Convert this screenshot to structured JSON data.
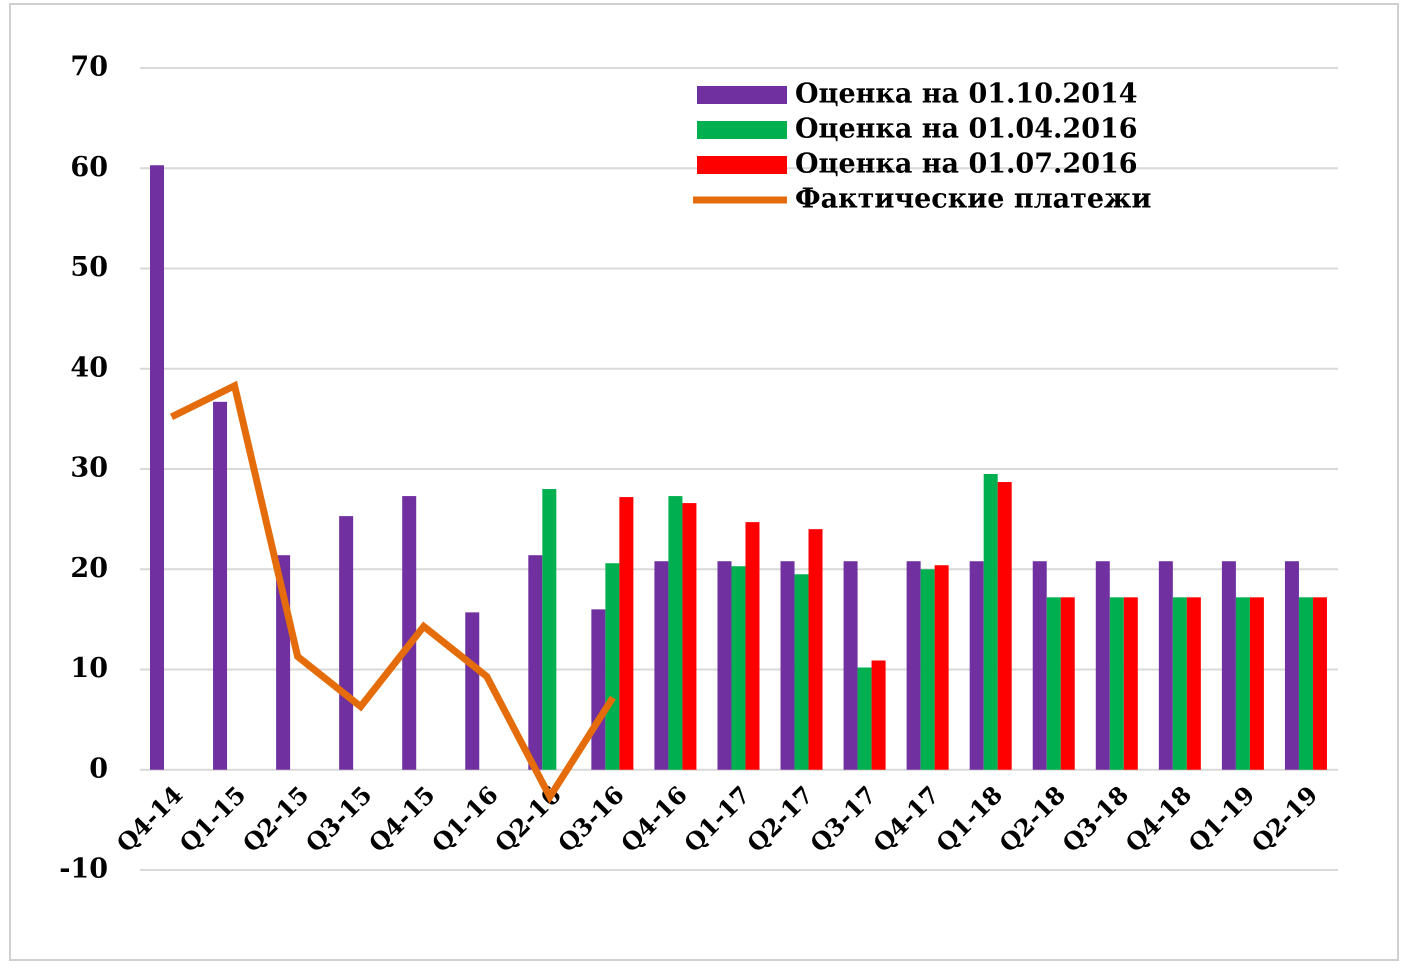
{
  "chart_data": {
    "type": "bar",
    "categories": [
      "Q4-14",
      "Q1-15",
      "Q2-15",
      "Q3-15",
      "Q4-15",
      "Q1-16",
      "Q2-16",
      "Q3-16",
      "Q4-16",
      "Q1-17",
      "Q2-17",
      "Q3-17",
      "Q4-17",
      "Q1-18",
      "Q2-18",
      "Q3-18",
      "Q4-18",
      "Q1-19",
      "Q2-19"
    ],
    "series": [
      {
        "name": "Оценка на 01.10.2014",
        "color": "#7030a0",
        "type": "bar",
        "values": [
          60.3,
          36.7,
          21.4,
          25.3,
          27.3,
          15.7,
          21.4,
          16.0,
          20.8,
          20.8,
          20.8,
          20.8,
          20.8,
          20.8,
          20.8,
          20.8,
          20.8,
          20.8,
          20.8
        ]
      },
      {
        "name": "Оценка на 01.04.2016",
        "color": "#00b050",
        "type": "bar",
        "values": [
          null,
          null,
          null,
          null,
          null,
          null,
          28.0,
          20.6,
          27.3,
          20.3,
          19.5,
          10.2,
          20.0,
          29.5,
          17.2,
          17.2,
          17.2,
          17.2,
          17.2
        ]
      },
      {
        "name": "Оценка на 01.07.2016",
        "color": "#ff0000",
        "type": "bar",
        "values": [
          null,
          null,
          null,
          null,
          null,
          null,
          null,
          27.2,
          26.6,
          24.7,
          24.0,
          10.9,
          20.4,
          28.7,
          17.2,
          17.2,
          17.2,
          17.2,
          17.2
        ]
      },
      {
        "name": "Фактические платежи",
        "color": "#e46c0a",
        "type": "line",
        "values": [
          35.2,
          38.3,
          11.3,
          6.3,
          14.3,
          9.3,
          -2.7,
          7.2,
          null,
          null,
          null,
          null,
          null,
          null,
          null,
          null,
          null,
          null,
          null
        ]
      }
    ],
    "ylim": [
      -10,
      70
    ],
    "yticks": [
      -10,
      0,
      10,
      20,
      30,
      40,
      50,
      60,
      70
    ],
    "grid": true,
    "legend": "top-right"
  }
}
